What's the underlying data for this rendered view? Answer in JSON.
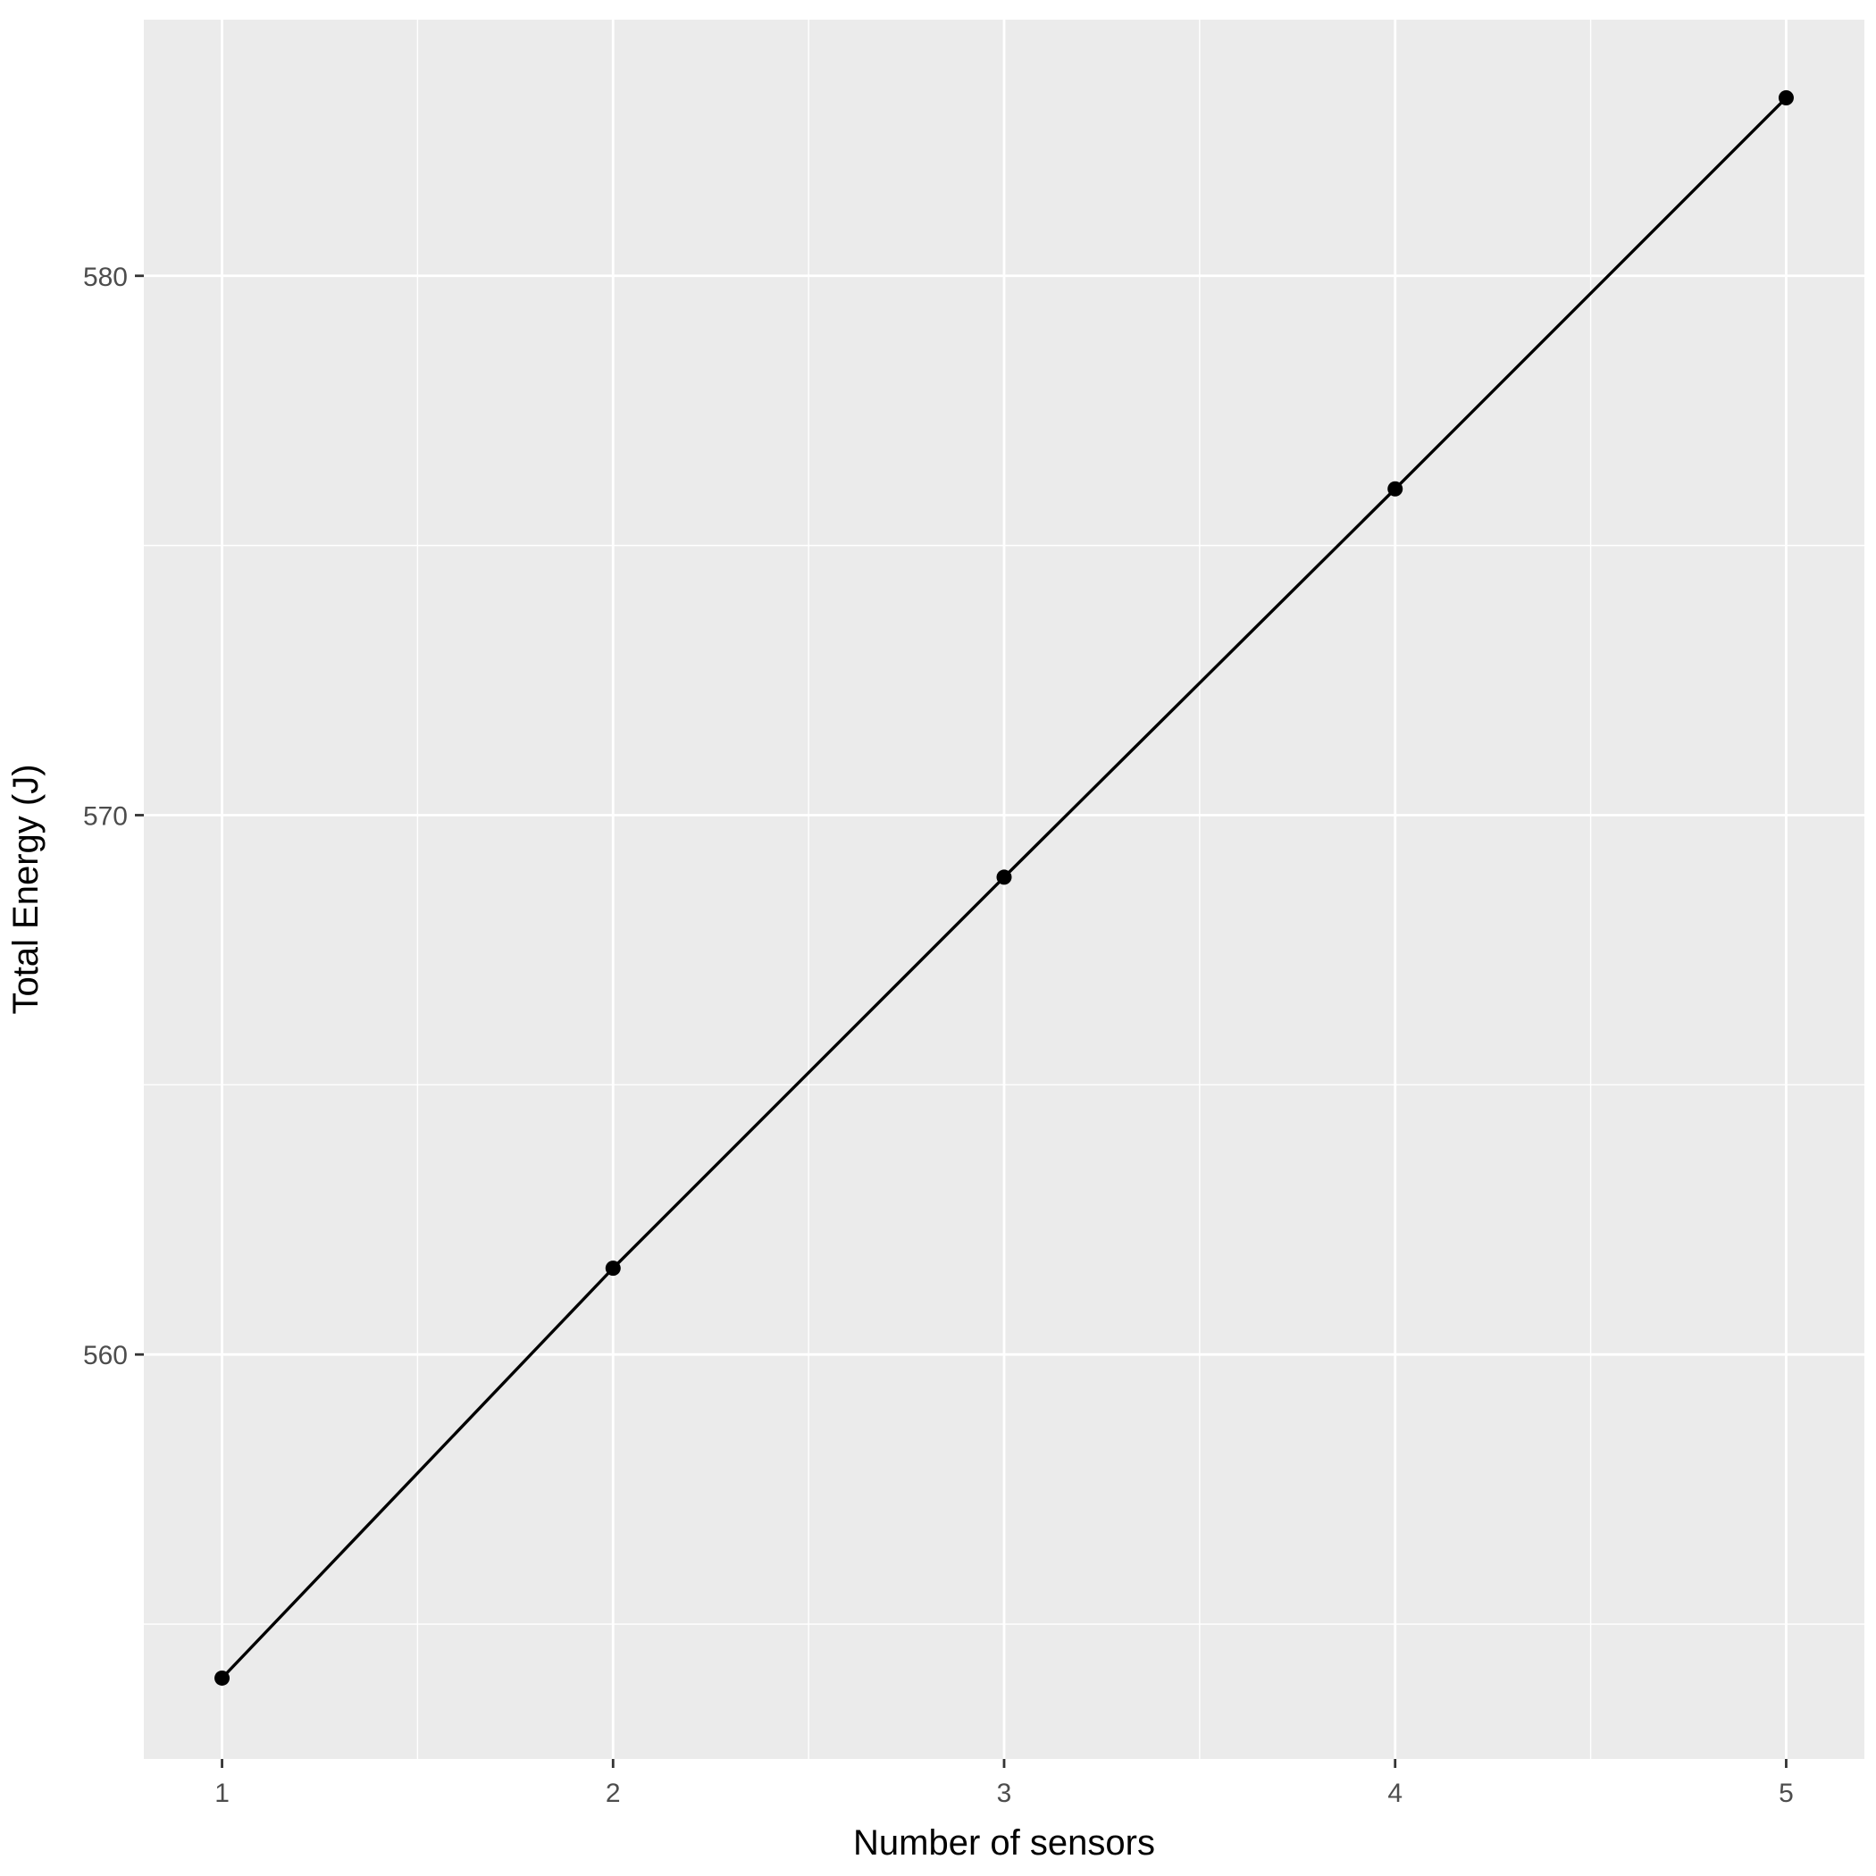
{
  "chart_data": {
    "type": "line",
    "title": "",
    "xlabel": "Number of sensors",
    "ylabel": "Total Energy (J)",
    "x": [
      1,
      2,
      3,
      4,
      5
    ],
    "series": [
      {
        "values": [
          554.0,
          561.6,
          568.85,
          576.05,
          583.3
        ]
      }
    ],
    "xlim": [
      0.8,
      5.2
    ],
    "ylim": [
      552.5,
      584.75
    ],
    "x_ticks": [
      1,
      2,
      3,
      4,
      5
    ],
    "x_tick_labels": [
      "1",
      "2",
      "3",
      "4",
      "5"
    ],
    "x_minor_ticks": [
      1.5,
      2.5,
      3.5,
      4.5
    ],
    "y_ticks": [
      560,
      570,
      580
    ],
    "y_tick_labels": [
      "560",
      "570",
      "580"
    ],
    "y_minor_ticks": [
      555,
      565,
      575
    ],
    "grid": true,
    "legend": "none",
    "colors": {
      "panel_background": "#ebebeb",
      "grid": "#ffffff",
      "line": "#000000",
      "point": "#000000",
      "tick_label": "#4d4d4d",
      "axis_title": "#000000"
    }
  }
}
